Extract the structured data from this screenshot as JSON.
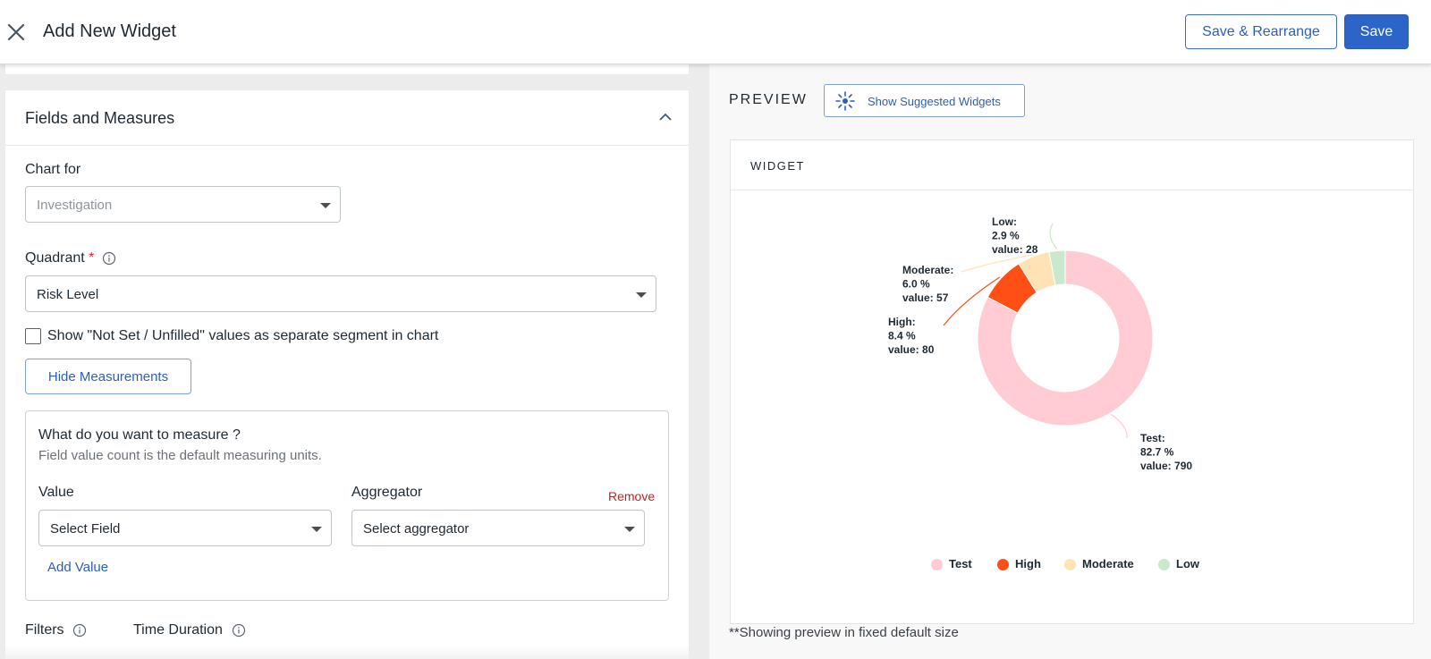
{
  "header": {
    "title": "Add New Widget",
    "save_rearrange_label": "Save & Rearrange",
    "save_label": "Save"
  },
  "fields_section": {
    "title": "Fields and Measures",
    "chart_for_label": "Chart for",
    "chart_for_value": "Investigation",
    "quadrant_label": "Quadrant",
    "quadrant_required": "*",
    "quadrant_value": "Risk Level",
    "not_set_checkbox_label": "Show \"Not Set / Unfilled\" values as separate segment in chart",
    "not_set_checked": false,
    "hide_measurements_label": "Hide Measurements"
  },
  "measure": {
    "question": "What do you want to measure ?",
    "subtitle": "Field value count is the default measuring units.",
    "value_label": "Value",
    "aggregator_label": "Aggregator",
    "remove_label": "Remove",
    "value_placeholder": "Select Field",
    "aggregator_placeholder": "Select aggregator",
    "add_value_label": "Add Value"
  },
  "bottom": {
    "filters_label": "Filters",
    "time_duration_label": "Time Duration"
  },
  "preview": {
    "label": "PREVIEW",
    "suggest_label": "Show Suggested Widgets",
    "widget_title": "WIDGET",
    "note": "**Showing preview in fixed default size"
  },
  "chart_data": {
    "type": "pie",
    "variant": "donut",
    "categories": [
      "Test",
      "High",
      "Moderate",
      "Low"
    ],
    "values": [
      790,
      80,
      57,
      28
    ],
    "percents": [
      "82.7 %",
      "8.4 %",
      "6.0 %",
      "2.9 %"
    ],
    "colors": [
      "#ffccd3",
      "#ff4f14",
      "#ffe2b5",
      "#c9e8cc"
    ],
    "legend_position": "bottom",
    "labels": [
      {
        "l1": "Test:",
        "l2": "82.7 %",
        "l3": "value: 790"
      },
      {
        "l1": "High:",
        "l2": "8.4 %",
        "l3": "value: 80"
      },
      {
        "l1": "Moderate:",
        "l2": "6.0 %",
        "l3": "value: 57"
      },
      {
        "l1": "Low:",
        "l2": "2.9 %",
        "l3": "value: 28"
      }
    ]
  }
}
